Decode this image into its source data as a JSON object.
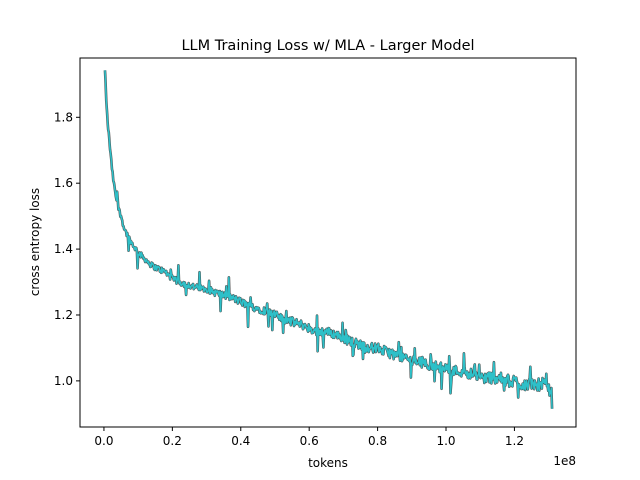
{
  "chart_data": {
    "type": "line",
    "title": "LLM Training Loss w/ MLA - Larger Model",
    "xlabel": "tokens",
    "ylabel": "cross entropy loss",
    "x_offset_label": "1e8",
    "xlim": [
      -7000000,
      138000000
    ],
    "ylim": [
      0.86,
      1.98
    ],
    "xticks": [
      0,
      20000000,
      40000000,
      60000000,
      80000000,
      100000000,
      120000000
    ],
    "xtick_labels": [
      "0.0",
      "0.2",
      "0.4",
      "0.6",
      "0.8",
      "1.0",
      "1.2"
    ],
    "yticks": [
      1.0,
      1.2,
      1.4,
      1.6,
      1.8
    ],
    "ytick_labels": [
      "1.0",
      "1.2",
      "1.4",
      "1.6",
      "1.8"
    ],
    "grid": false,
    "series": [
      {
        "color": "#2ec0c8",
        "edge_color": "#4a4a4a",
        "x": [
          300000,
          600000,
          1000000,
          1500000,
          2000000,
          2500000,
          3000000,
          4000000,
          5000000,
          6000000,
          7000000,
          8000000,
          10000000,
          12000000,
          14000000,
          16000000,
          18000000,
          20000000,
          22000000,
          25000000,
          28000000,
          30000000,
          32000000,
          35000000,
          38000000,
          40000000,
          42000000,
          45000000,
          48000000,
          50000000,
          52000000,
          55000000,
          58000000,
          60000000,
          62000000,
          65000000,
          68000000,
          70000000,
          72000000,
          75000000,
          78000000,
          80000000,
          82000000,
          85000000,
          88000000,
          90000000,
          92000000,
          95000000,
          98000000,
          100000000,
          102000000,
          105000000,
          108000000,
          110000000,
          112000000,
          115000000,
          118000000,
          120000000,
          122000000,
          125000000,
          128000000,
          130000000,
          131000000
        ],
        "y": [
          1.94,
          1.87,
          1.79,
          1.74,
          1.68,
          1.63,
          1.59,
          1.53,
          1.5,
          1.46,
          1.44,
          1.42,
          1.39,
          1.37,
          1.35,
          1.34,
          1.33,
          1.31,
          1.3,
          1.29,
          1.28,
          1.28,
          1.27,
          1.26,
          1.25,
          1.24,
          1.23,
          1.22,
          1.21,
          1.2,
          1.19,
          1.18,
          1.17,
          1.16,
          1.15,
          1.15,
          1.14,
          1.13,
          1.12,
          1.11,
          1.1,
          1.1,
          1.09,
          1.08,
          1.07,
          1.06,
          1.06,
          1.05,
          1.04,
          1.04,
          1.03,
          1.03,
          1.02,
          1.01,
          1.01,
          1.01,
          1.0,
          1.0,
          0.99,
          0.99,
          0.99,
          0.98,
          0.96
        ]
      }
    ]
  }
}
